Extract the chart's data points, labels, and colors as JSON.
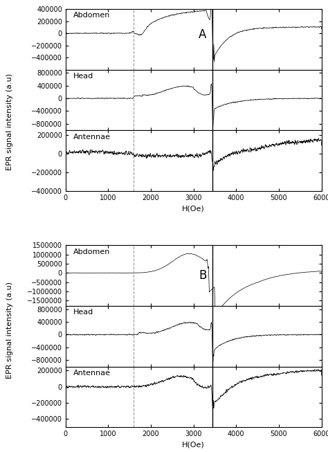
{
  "title": "",
  "xlabel": "H(Oe)",
  "ylabel": "EPR signal intensity (a.u)",
  "xlim": [
    0,
    6000
  ],
  "dashed_line_x": 1600,
  "solid_line_x": 3450,
  "group_A": {
    "label": "A",
    "abdomen": {
      "title": "Abdomen",
      "ylim": [
        -600000,
        400000
      ],
      "yticks": [
        -400000,
        -200000,
        0,
        200000,
        400000
      ]
    },
    "head": {
      "title": "Head",
      "ylim": [
        -1000000,
        900000
      ],
      "yticks": [
        -800000,
        -400000,
        0,
        400000,
        800000
      ]
    },
    "antennae": {
      "title": "Antennae",
      "ylim": [
        -400000,
        250000
      ],
      "yticks": [
        -400000,
        -200000,
        0,
        200000
      ]
    }
  },
  "group_B": {
    "label": "B",
    "abdomen": {
      "title": "Abdomen",
      "ylim": [
        -1800000,
        1500000
      ],
      "yticks": [
        -1500000,
        -1000000,
        -500000,
        0,
        500000,
        1000000,
        1500000
      ]
    },
    "head": {
      "title": "Head",
      "ylim": [
        -1000000,
        900000
      ],
      "yticks": [
        -800000,
        -400000,
        0,
        400000,
        800000
      ]
    },
    "antennae": {
      "title": "Antennae",
      "ylim": [
        -500000,
        250000
      ],
      "yticks": [
        -400000,
        -200000,
        0,
        200000
      ]
    }
  },
  "xticks": [
    0,
    1000,
    2000,
    3000,
    4000,
    5000,
    6000
  ],
  "line_color": "black",
  "background_color": "white",
  "tick_fontsize": 7,
  "label_fontsize": 8,
  "annotation_fontsize": 12
}
